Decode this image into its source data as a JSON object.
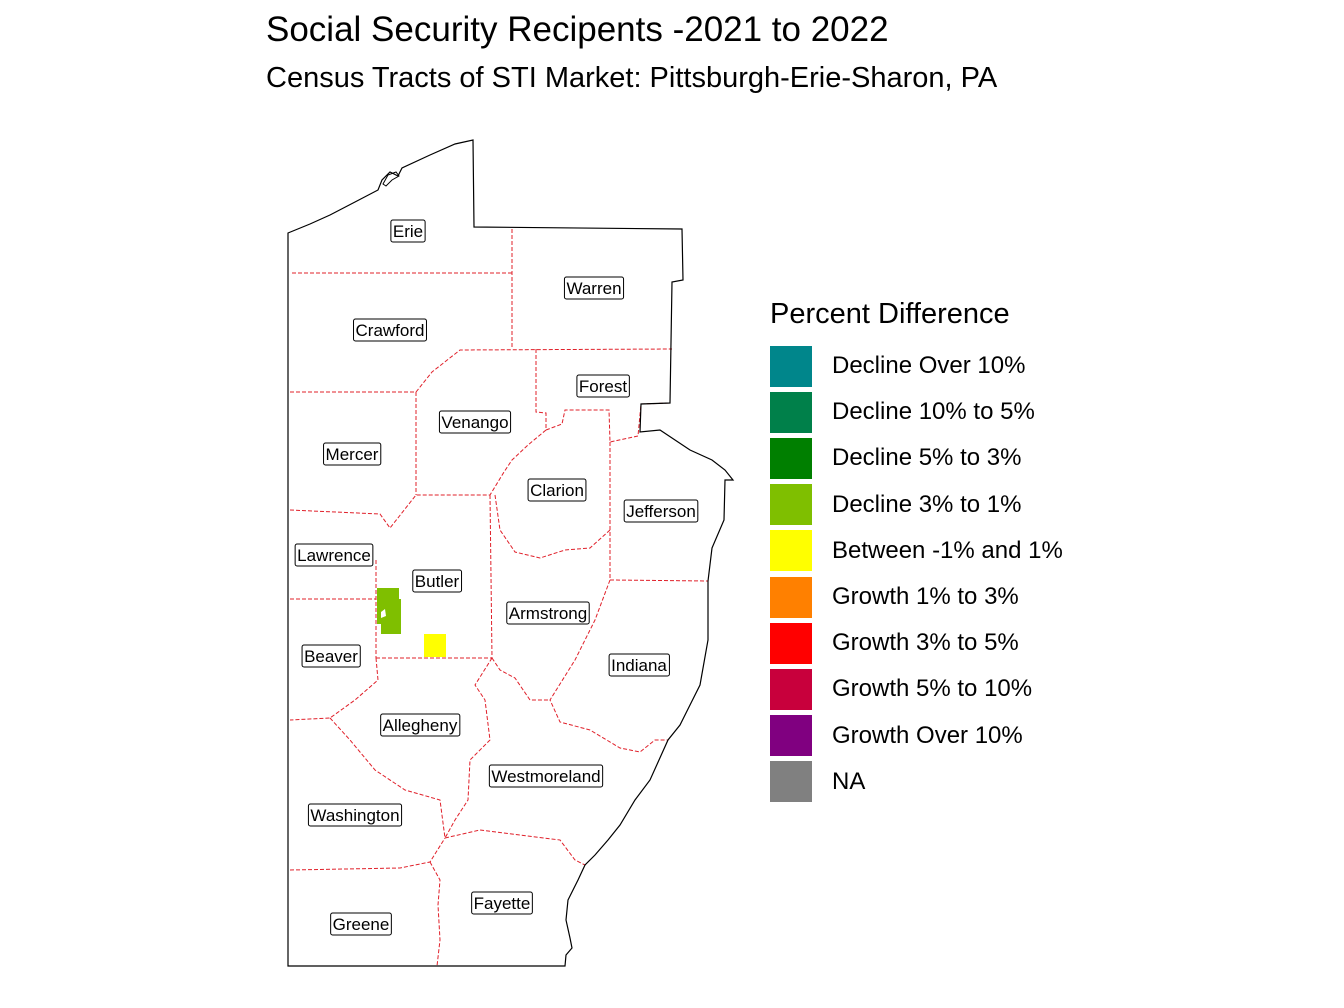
{
  "map": {
    "title": "Social Security Recipents -2021 to 2022",
    "subtitle": "Census Tracts of STI Market: Pittsburgh-Erie-Sharon, PA",
    "counties": [
      "Erie",
      "Warren",
      "Crawford",
      "Forest",
      "Venango",
      "Mercer",
      "Clarion",
      "Jefferson",
      "Lawrence",
      "Butler",
      "Armstrong",
      "Beaver",
      "Indiana",
      "Allegheny",
      "Westmoreland",
      "Washington",
      "Fayette",
      "Greene"
    ],
    "colors": {
      "outline": "#000000",
      "county_border": "#e0202a"
    },
    "highlighted_tracts": [
      {
        "category": "Decline 3% to 1%",
        "county": "Butler"
      },
      {
        "category": "Between -1% and 1%",
        "county": "Butler"
      }
    ]
  },
  "legend": {
    "title": "Percent Difference",
    "items": [
      {
        "label": "Decline Over 10%",
        "color": "#00868b"
      },
      {
        "label": "Decline 10% to 5%",
        "color": "#00804a"
      },
      {
        "label": "Decline 5% to 3%",
        "color": "#007f00"
      },
      {
        "label": "Decline 3% to 1%",
        "color": "#7fbf00"
      },
      {
        "label": "Between -1% and 1%",
        "color": "#ffff00"
      },
      {
        "label": "Growth 1% to 3%",
        "color": "#ff8000"
      },
      {
        "label": "Growth 3% to 5%",
        "color": "#ff0000"
      },
      {
        "label": "Growth 5% to 10%",
        "color": "#c8003c"
      },
      {
        "label": "Growth Over 10%",
        "color": "#800080"
      },
      {
        "label": "NA",
        "color": "#808080"
      }
    ]
  }
}
